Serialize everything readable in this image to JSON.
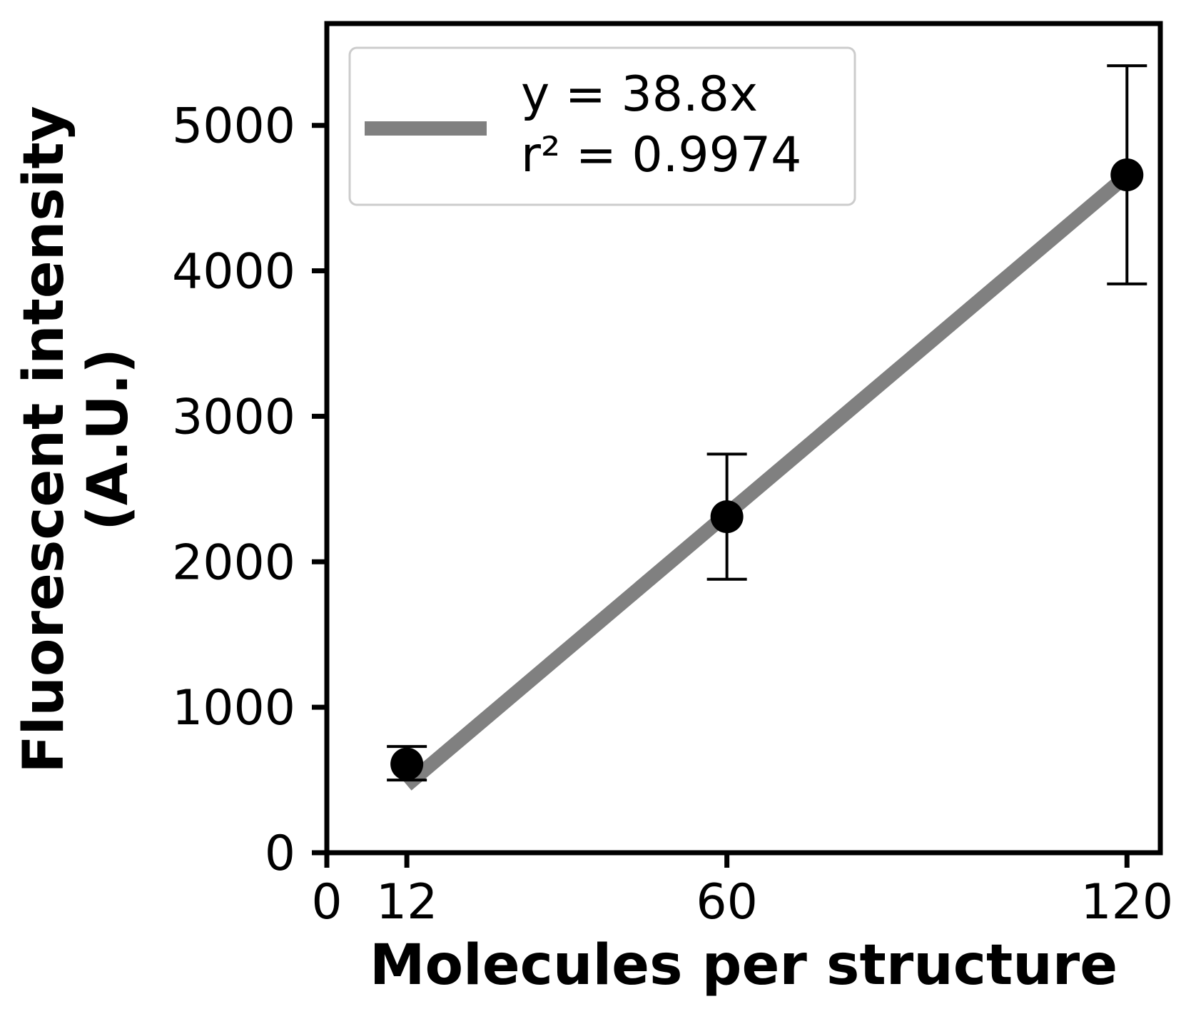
{
  "chart_data": {
    "type": "scatter",
    "xlabel": "Molecules per structure",
    "ylabel_line1": "Fluorescent intensity",
    "ylabel_line2": "(A.U.)",
    "xlim": [
      0,
      125
    ],
    "ylim": [
      0,
      5700
    ],
    "xticks": [
      0,
      12,
      60,
      120
    ],
    "yticks": [
      0,
      1000,
      2000,
      3000,
      4000,
      5000
    ],
    "grid": false,
    "legend_position": "top-left",
    "points": [
      {
        "x": 12,
        "y": 610,
        "err_low": 500,
        "err_high": 730
      },
      {
        "x": 60,
        "y": 2310,
        "err_low": 1880,
        "err_high": 2740
      },
      {
        "x": 120,
        "y": 4660,
        "err_low": 3910,
        "err_high": 5410
      }
    ],
    "fit_line": {
      "slope": 38.8,
      "x_range": [
        12,
        120
      ],
      "color": "#808080",
      "label_line1": "y = 38.8x",
      "label_line2": "r² = 0.9974"
    },
    "point_color": "#000000"
  }
}
